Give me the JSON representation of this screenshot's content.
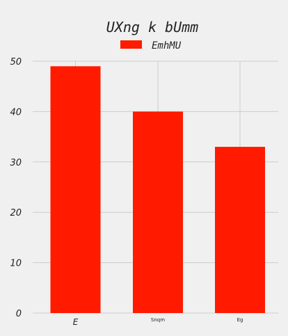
{
  "chart_data": {
    "type": "bar",
    "title": "UXng k  bUmm",
    "categories": [
      "E",
      "Snqm",
      "Eg"
    ],
    "series": [
      {
        "name": "EmhMU",
        "values": [
          49,
          40,
          33
        ]
      }
    ],
    "ylim": [
      0,
      50
    ],
    "yticks": [
      0,
      10,
      20,
      30,
      40,
      50
    ],
    "grid": true,
    "legend_position": "top-center",
    "bar_color": "#ff1a00",
    "background_color": "#f0f0f0",
    "grid_color": "#cbcbcb"
  }
}
